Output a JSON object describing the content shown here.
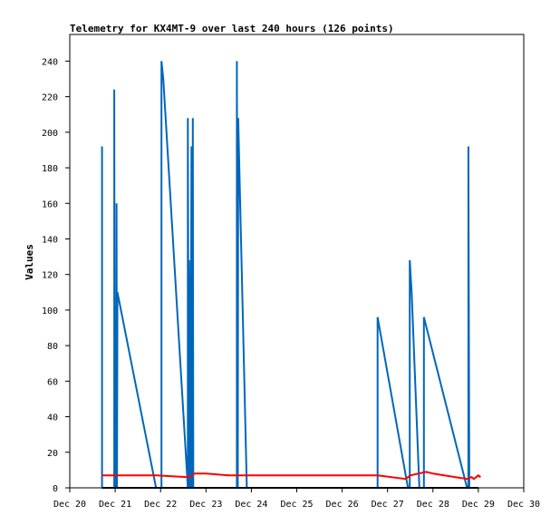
{
  "chart_data": {
    "type": "line",
    "title": "Telemetry for KX4MT-9 over last 240 hours (126 points)",
    "xlabel": "",
    "ylabel": "Values",
    "ylim": [
      0,
      255
    ],
    "xlim": [
      0,
      10
    ],
    "x_ticks": [
      {
        "value": 0,
        "label": "Dec 20"
      },
      {
        "value": 1,
        "label": "Dec 21"
      },
      {
        "value": 2,
        "label": "Dec 22"
      },
      {
        "value": 3,
        "label": "Dec 23"
      },
      {
        "value": 4,
        "label": "Dec 24"
      },
      {
        "value": 5,
        "label": "Dec 25"
      },
      {
        "value": 6,
        "label": "Dec 26"
      },
      {
        "value": 7,
        "label": "Dec 27"
      },
      {
        "value": 8,
        "label": "Dec 28"
      },
      {
        "value": 9,
        "label": "Dec 29"
      },
      {
        "value": 10,
        "label": "Dec 30"
      }
    ],
    "y_ticks": [
      0,
      20,
      40,
      60,
      80,
      100,
      120,
      140,
      160,
      180,
      200,
      220,
      240
    ],
    "grid": false,
    "series": [
      {
        "color": "#0066bb",
        "points": [
          [
            0.71,
            0
          ],
          [
            0.71,
            192
          ],
          [
            0.71,
            0
          ],
          [
            0.98,
            0
          ],
          [
            0.98,
            224
          ],
          [
            0.99,
            0
          ],
          [
            1.0,
            55
          ],
          [
            1.02,
            0
          ],
          [
            1.03,
            160
          ],
          [
            1.04,
            0
          ],
          [
            1.05,
            110
          ],
          [
            1.9,
            0
          ],
          [
            2.02,
            0
          ],
          [
            2.02,
            240
          ],
          [
            2.06,
            230
          ],
          [
            2.6,
            0
          ],
          [
            2.6,
            208
          ],
          [
            2.62,
            0
          ],
          [
            2.63,
            128
          ],
          [
            2.66,
            0
          ],
          [
            2.68,
            192
          ],
          [
            2.7,
            0
          ],
          [
            2.71,
            208
          ],
          [
            2.72,
            0
          ],
          [
            3.68,
            0
          ],
          [
            3.68,
            240
          ],
          [
            3.7,
            0
          ],
          [
            3.71,
            208
          ],
          [
            3.73,
            185
          ],
          [
            3.9,
            0
          ],
          [
            6.78,
            0
          ],
          [
            6.78,
            96
          ],
          [
            7.45,
            0
          ],
          [
            7.49,
            0
          ],
          [
            7.49,
            128
          ],
          [
            7.53,
            110
          ],
          [
            7.7,
            0
          ],
          [
            7.8,
            0
          ],
          [
            7.8,
            96
          ],
          [
            8.75,
            0
          ],
          [
            8.78,
            0
          ],
          [
            8.78,
            192
          ],
          [
            8.8,
            0
          ]
        ]
      },
      {
        "color": "#ff0000",
        "points": [
          [
            0.71,
            7
          ],
          [
            1.0,
            7
          ],
          [
            1.9,
            7
          ],
          [
            2.6,
            6
          ],
          [
            2.75,
            8
          ],
          [
            3.0,
            8
          ],
          [
            3.5,
            7
          ],
          [
            4.0,
            7
          ],
          [
            5.0,
            7
          ],
          [
            6.0,
            7
          ],
          [
            6.78,
            7
          ],
          [
            7.4,
            5
          ],
          [
            7.5,
            7
          ],
          [
            7.85,
            9
          ],
          [
            8.0,
            8
          ],
          [
            8.5,
            6
          ],
          [
            8.75,
            5
          ],
          [
            8.85,
            6
          ],
          [
            8.9,
            5
          ],
          [
            9.0,
            7
          ],
          [
            9.05,
            6
          ]
        ]
      },
      {
        "color": "#000000",
        "points": [
          [
            0.71,
            0
          ],
          [
            9.0,
            0
          ]
        ]
      }
    ]
  }
}
